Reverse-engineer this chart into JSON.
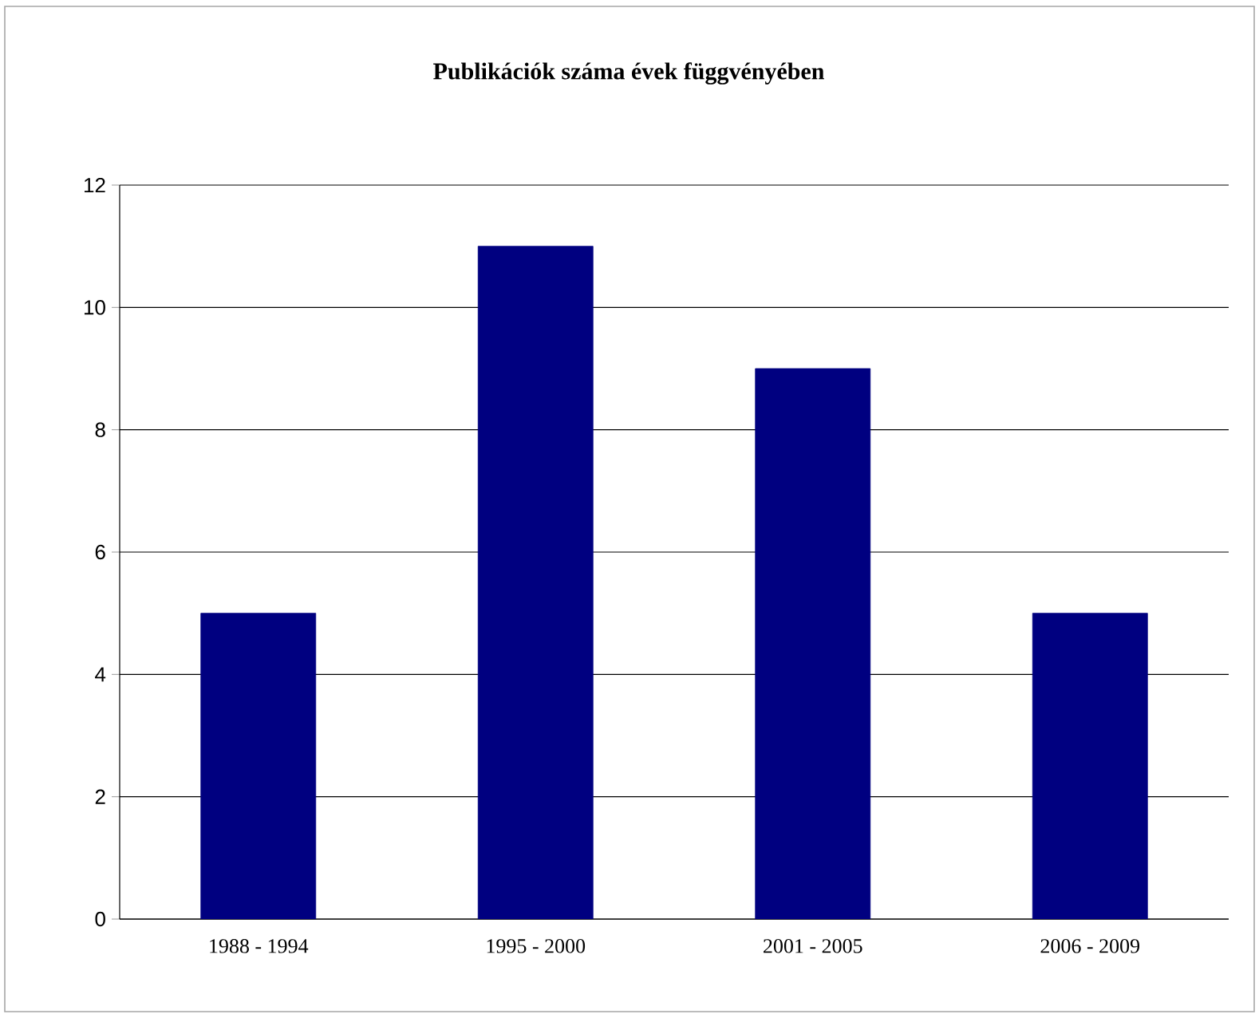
{
  "chart_data": {
    "type": "bar",
    "title": "Publikációk száma évek függvényében",
    "categories": [
      "1988 - 1994",
      "1995 - 2000",
      "2001 - 2005",
      "2006 - 2009"
    ],
    "values": [
      5,
      11,
      9,
      5
    ],
    "color": "#000080",
    "ylim": [
      0,
      12
    ],
    "yticks": [
      0,
      2,
      4,
      6,
      8,
      10,
      12
    ],
    "grid": "y"
  }
}
